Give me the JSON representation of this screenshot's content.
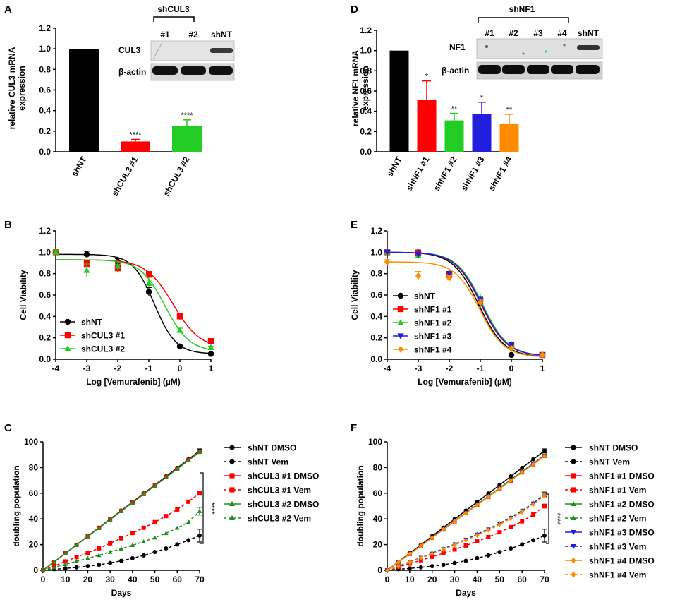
{
  "colors": {
    "black": "#000000",
    "red": "#ff0000",
    "green": "#22cc22",
    "blue": "#1f1fdd",
    "orange": "#ff8c00",
    "darkgreen": "#1f8f1f"
  },
  "panels": {
    "A": {
      "label": "A",
      "ylabel_1": "relative CUL3 mRNA",
      "ylabel_2": "expression",
      "blot": {
        "group": "shCUL3",
        "lanes": [
          "#1",
          "#2",
          "shNT"
        ],
        "rows": [
          "CUL3",
          "β-actin"
        ]
      }
    },
    "D": {
      "label": "D",
      "ylabel_1": "relative NF1 mRNA",
      "ylabel_2": "expression",
      "blot": {
        "group": "shNF1",
        "lanes": [
          "#1",
          "#2",
          "#3",
          "#4",
          "shNT"
        ],
        "rows": [
          "NF1",
          "β-actin"
        ]
      }
    },
    "B": {
      "label": "B"
    },
    "E": {
      "label": "E"
    },
    "C": {
      "label": "C",
      "sig": "****"
    },
    "F": {
      "label": "F",
      "sig": "****"
    }
  },
  "chart_data": [
    {
      "id": "A",
      "type": "bar",
      "title": "",
      "xlabel": "",
      "ylabel": "relative CUL3 mRNA expression",
      "ylim": [
        0,
        1.2
      ],
      "yticks": [
        0.0,
        0.2,
        0.4,
        0.6,
        0.8,
        1.0,
        1.2
      ],
      "categories": [
        "shNT",
        "shCUL3 #1",
        "shCUL3 #2"
      ],
      "values": [
        1.0,
        0.1,
        0.25
      ],
      "errors": [
        0,
        0.02,
        0.06
      ],
      "significance": [
        "",
        "****",
        "****"
      ],
      "colors": [
        "#000000",
        "#ff0000",
        "#22cc22"
      ]
    },
    {
      "id": "D",
      "type": "bar",
      "title": "",
      "xlabel": "",
      "ylabel": "relative NF1 mRNA expression",
      "ylim": [
        0,
        1.2
      ],
      "yticks": [
        0.0,
        0.2,
        0.4,
        0.6,
        0.8,
        1.0,
        1.2
      ],
      "categories": [
        "shNT",
        "shNF1 #1",
        "shNF1 #2",
        "shNF1 #3",
        "shNF1 #4"
      ],
      "values": [
        1.0,
        0.51,
        0.31,
        0.37,
        0.28
      ],
      "errors": [
        0,
        0.19,
        0.07,
        0.12,
        0.09
      ],
      "significance": [
        "",
        "*",
        "**",
        "*",
        "**"
      ],
      "colors": [
        "#000000",
        "#ff0000",
        "#22cc22",
        "#1f1fdd",
        "#ff8c00"
      ]
    },
    {
      "id": "B",
      "type": "line",
      "title": "",
      "xlabel": "Log [Vemurafenib] (µM)",
      "ylabel": "Cell  Viability",
      "xlim": [
        -4,
        1
      ],
      "ylim": [
        0,
        1.2
      ],
      "xticks": [
        -4,
        -3,
        -2,
        -1,
        0,
        1
      ],
      "yticks": [
        0.0,
        0.2,
        0.4,
        0.6,
        0.8,
        1.0,
        1.2
      ],
      "legend": "bottom-left",
      "x": [
        -4,
        -3,
        -2,
        -1,
        0,
        1
      ],
      "series": [
        {
          "name": "shNT",
          "color": "#000000",
          "marker": "circle",
          "values": [
            1.0,
            0.98,
            0.91,
            0.63,
            0.12,
            0.05
          ],
          "errors": [
            0.02,
            0.03,
            0.03,
            0.04,
            0.01,
            0.01
          ],
          "fit": {
            "top": 0.98,
            "bottom": 0.05,
            "ec50": -0.82,
            "hill": 1.25
          }
        },
        {
          "name": "shCUL3 #1",
          "color": "#ff0000",
          "marker": "square",
          "values": [
            1.0,
            0.89,
            0.85,
            0.79,
            0.4,
            0.17
          ],
          "errors": [
            0.02,
            0.03,
            0.04,
            0.03,
            0.03,
            0.01
          ],
          "fit": {
            "top": 0.93,
            "bottom": 0.1,
            "ec50": -0.22,
            "hill": 1.0
          }
        },
        {
          "name": "shCUL3 #2",
          "color": "#22cc22",
          "marker": "triangle",
          "values": [
            1.0,
            0.83,
            0.87,
            0.71,
            0.27,
            0.11
          ],
          "errors": [
            0.02,
            0.06,
            0.04,
            0.03,
            0.02,
            0.01
          ],
          "fit": {
            "top": 0.93,
            "bottom": 0.07,
            "ec50": -0.48,
            "hill": 1.1
          }
        }
      ]
    },
    {
      "id": "E",
      "type": "line",
      "title": "",
      "xlabel": "Log [Vemurafenib] (µM)",
      "ylabel": "Cell  Viability",
      "xlim": [
        -4,
        1
      ],
      "ylim": [
        0,
        1.2
      ],
      "xticks": [
        -4,
        -3,
        -2,
        -1,
        0,
        1
      ],
      "yticks": [
        0.0,
        0.2,
        0.4,
        0.6,
        0.8,
        1.0,
        1.2
      ],
      "legend": "bottom-left",
      "x": [
        -4,
        -3,
        -2,
        -1,
        0,
        1
      ],
      "series": [
        {
          "name": "shNT",
          "color": "#000000",
          "marker": "circle",
          "values": [
            1.0,
            1.0,
            0.8,
            0.52,
            0.04,
            0.04
          ],
          "errors": [
            0.02,
            0.02,
            0.02,
            0.03,
            0.01,
            0.01
          ],
          "fit": {
            "top": 1.0,
            "bottom": 0.02,
            "ec50": -1.05,
            "hill": 1.05
          }
        },
        {
          "name": "shNF1 #1",
          "color": "#ff0000",
          "marker": "square",
          "values": [
            1.0,
            0.99,
            0.79,
            0.55,
            0.13,
            0.04
          ],
          "errors": [
            0.02,
            0.03,
            0.02,
            0.03,
            0.01,
            0.01
          ],
          "fit": {
            "top": 1.0,
            "bottom": 0.03,
            "ec50": -0.98,
            "hill": 1.05
          }
        },
        {
          "name": "shNF1 #2",
          "color": "#22cc22",
          "marker": "triangle",
          "values": [
            1.0,
            0.97,
            0.8,
            0.57,
            0.14,
            0.04
          ],
          "errors": [
            0.02,
            0.03,
            0.02,
            0.04,
            0.01,
            0.01
          ],
          "fit": {
            "top": 1.0,
            "bottom": 0.03,
            "ec50": -0.93,
            "hill": 1.05
          }
        },
        {
          "name": "shNF1 #3",
          "color": "#1f1fdd",
          "marker": "triangle-down",
          "values": [
            1.0,
            0.98,
            0.8,
            0.55,
            0.14,
            0.04
          ],
          "errors": [
            0.02,
            0.03,
            0.02,
            0.03,
            0.01,
            0.01
          ],
          "fit": {
            "top": 1.0,
            "bottom": 0.03,
            "ec50": -0.96,
            "hill": 1.05
          }
        },
        {
          "name": "shNF1 #4",
          "color": "#ff8c00",
          "marker": "diamond",
          "values": [
            0.91,
            0.78,
            0.76,
            0.53,
            0.1,
            0.04
          ],
          "errors": [
            0.02,
            0.04,
            0.02,
            0.03,
            0.01,
            0.01
          ],
          "fit": {
            "top": 0.91,
            "bottom": 0.02,
            "ec50": -1.02,
            "hill": 1.1
          }
        }
      ]
    },
    {
      "id": "C",
      "type": "line",
      "title": "",
      "xlabel": "Days",
      "ylabel": "doubling population",
      "xlim": [
        0,
        70
      ],
      "ylim": [
        0,
        100
      ],
      "xticks": [
        0,
        10,
        20,
        30,
        40,
        50,
        60,
        70
      ],
      "yticks": [
        0,
        20,
        40,
        60,
        80,
        100
      ],
      "legend": "right",
      "x": [
        0,
        5,
        10,
        15,
        20,
        25,
        30,
        35,
        40,
        45,
        50,
        55,
        60,
        65,
        70
      ],
      "significance": "****",
      "series": [
        {
          "name": "shNT DMSO",
          "color": "#000000",
          "marker": "circle",
          "dashed": false,
          "values": [
            0,
            6.6,
            13.3,
            19.9,
            26.6,
            33.2,
            39.9,
            46.5,
            53.1,
            59.8,
            66.4,
            73.1,
            79.7,
            86.4,
            93
          ],
          "final_error": 1.5
        },
        {
          "name": "shNT Vem",
          "color": "#000000",
          "marker": "circle",
          "dashed": true,
          "values": [
            0,
            0.8,
            1.5,
            2.3,
            3.2,
            4.3,
            5.7,
            7.4,
            9.4,
            11.6,
            14.2,
            17,
            20.1,
            23.4,
            27
          ],
          "final_error": 5
        },
        {
          "name": "shCUL3 #1 DMSO",
          "color": "#ff0000",
          "marker": "square",
          "dashed": false,
          "values": [
            0,
            6.6,
            13.2,
            19.8,
            26.4,
            33,
            39.6,
            46.2,
            52.8,
            59.4,
            66,
            72.6,
            79.2,
            85.8,
            92.4
          ],
          "final_error": 1
        },
        {
          "name": "shCUL3 #1 Vem",
          "color": "#ff0000",
          "marker": "square",
          "dashed": true,
          "values": [
            0,
            3.4,
            6.9,
            10.3,
            13.7,
            17.1,
            21,
            24.9,
            29,
            33.1,
            37.5,
            42.2,
            47.3,
            53.4,
            60
          ],
          "final_error": 1.5
        },
        {
          "name": "shCUL3 #2 DMSO",
          "color": "#1f8f1f",
          "marker": "triangle",
          "dashed": false,
          "values": [
            0,
            6.6,
            13.2,
            19.7,
            26.3,
            32.9,
            39.5,
            46,
            52.6,
            59.2,
            65.8,
            72.3,
            78.9,
            85.5,
            92
          ],
          "final_error": 1
        },
        {
          "name": "shCUL3 #2 Vem",
          "color": "#1f8f1f",
          "marker": "triangle",
          "dashed": true,
          "values": [
            0,
            2.3,
            4.6,
            7,
            9.3,
            11.7,
            14.2,
            16.8,
            19.5,
            22.3,
            25.4,
            28.8,
            32.9,
            37.5,
            46
          ],
          "final_error": 3
        }
      ]
    },
    {
      "id": "F",
      "type": "line",
      "title": "",
      "xlabel": "Days",
      "ylabel": "doubling population",
      "xlim": [
        0,
        70
      ],
      "ylim": [
        0,
        100
      ],
      "xticks": [
        0,
        10,
        20,
        30,
        40,
        50,
        60,
        70
      ],
      "yticks": [
        0,
        20,
        40,
        60,
        80,
        100
      ],
      "legend": "right",
      "x": [
        0,
        5,
        10,
        15,
        20,
        25,
        30,
        35,
        40,
        45,
        50,
        55,
        60,
        65,
        70
      ],
      "significance": "****",
      "series": [
        {
          "name": "shNT DMSO",
          "color": "#000000",
          "marker": "circle",
          "dashed": false,
          "values": [
            0,
            6.6,
            13.3,
            19.9,
            26.6,
            33.2,
            39.9,
            46.5,
            53.1,
            59.8,
            66.4,
            73.1,
            79.7,
            86.4,
            93
          ],
          "final_error": 1.5
        },
        {
          "name": "shNT Vem",
          "color": "#000000",
          "marker": "circle",
          "dashed": true,
          "values": [
            0,
            0.8,
            1.5,
            2.3,
            3.2,
            4.3,
            5.7,
            7.4,
            9.4,
            11.6,
            14.2,
            17,
            20.1,
            23.4,
            27
          ],
          "final_error": 5
        },
        {
          "name": "shNF1 #1 DMSO",
          "color": "#ff0000",
          "marker": "square",
          "dashed": false,
          "values": [
            0,
            6.4,
            12.7,
            19.1,
            25.4,
            31.8,
            38.1,
            44.5,
            50.9,
            57.2,
            63.6,
            69.9,
            76.3,
            82.6,
            89
          ],
          "final_error": 1
        },
        {
          "name": "shNF1 #1 Vem",
          "color": "#ff0000",
          "marker": "square",
          "dashed": true,
          "values": [
            0,
            2.6,
            5.2,
            7.8,
            10.5,
            13.3,
            16.2,
            19.3,
            22.5,
            25.9,
            29.6,
            33.6,
            38.1,
            43.4,
            50
          ],
          "final_error": 1.5
        },
        {
          "name": "shNF1 #2 DMSO",
          "color": "#1f8f1f",
          "marker": "triangle",
          "dashed": false,
          "values": [
            0,
            6.4,
            12.8,
            19.2,
            25.6,
            32,
            38.4,
            44.8,
            51.2,
            57.6,
            64,
            70.4,
            76.8,
            83.2,
            89.6
          ],
          "final_error": 1
        },
        {
          "name": "shNF1 #2 Vem",
          "color": "#1f8f1f",
          "marker": "triangle",
          "dashed": true,
          "values": [
            0,
            3.3,
            6.6,
            9.9,
            13.3,
            16.8,
            20.4,
            24.2,
            28.1,
            32.2,
            36.6,
            41.3,
            46.5,
            52.5,
            59.5
          ],
          "final_error": 1.5
        },
        {
          "name": "shNF1 #3 DMSO",
          "color": "#1f1fdd",
          "marker": "triangle-down",
          "dashed": false,
          "values": [
            0,
            6.4,
            12.7,
            19.1,
            25.5,
            31.9,
            38.2,
            44.6,
            51,
            57.4,
            63.7,
            70.1,
            76.5,
            82.9,
            89.2
          ],
          "final_error": 1
        },
        {
          "name": "shNF1 #3 Vem",
          "color": "#1f1fdd",
          "marker": "triangle-down",
          "dashed": true,
          "values": [
            0,
            3.2,
            6.5,
            9.8,
            13.1,
            16.6,
            20.2,
            23.9,
            27.8,
            31.9,
            36.2,
            40.9,
            46.1,
            52,
            59
          ],
          "final_error": 1.5
        },
        {
          "name": "shNF1 #4 DMSO",
          "color": "#ff8c00",
          "marker": "diamond",
          "dashed": false,
          "values": [
            0,
            6.4,
            12.7,
            19,
            25.4,
            31.8,
            38.1,
            44.5,
            50.8,
            57.2,
            63.5,
            69.9,
            76.2,
            82.6,
            88.9
          ],
          "final_error": 1
        },
        {
          "name": "shNF1 #4 Vem",
          "color": "#ff8c00",
          "marker": "diamond",
          "dashed": true,
          "values": [
            0,
            3.1,
            6.3,
            9.5,
            12.8,
            16.2,
            19.7,
            23.4,
            27.2,
            31.3,
            35.6,
            40.2,
            45.4,
            51.3,
            58.2
          ],
          "final_error": 1.5
        }
      ]
    }
  ]
}
